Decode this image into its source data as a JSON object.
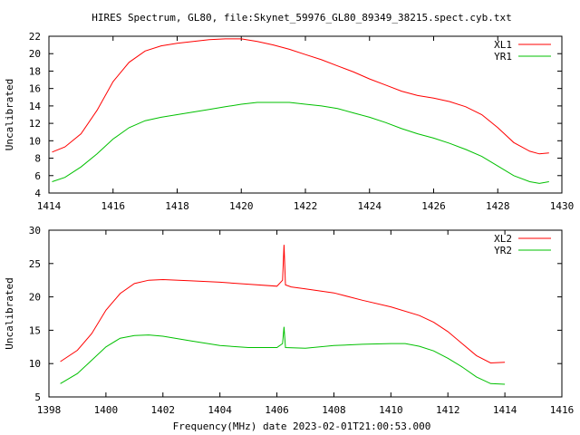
{
  "title": "HIRES Spectrum, GL80, file:Skynet_59976_GL80_89349_38215.spect.cyb.txt",
  "xlabel": "Frequency(MHz) date 2023-02-01T21:00:53.000",
  "chart_data": [
    {
      "type": "line",
      "ylabel": "Uncalibrated",
      "xlim": [
        1414,
        1430
      ],
      "ylim": [
        4,
        22
      ],
      "xticks": [
        1414,
        1416,
        1418,
        1420,
        1422,
        1424,
        1426,
        1428,
        1430
      ],
      "yticks": [
        4,
        6,
        8,
        10,
        12,
        14,
        16,
        18,
        20,
        22
      ],
      "legend_position": "top-right",
      "series": [
        {
          "name": "XL1",
          "color": "#ff0000",
          "x": [
            1414.1,
            1414.5,
            1415,
            1415.5,
            1416,
            1416.5,
            1417,
            1417.5,
            1418,
            1418.5,
            1419,
            1419.5,
            1420,
            1420.5,
            1421,
            1421.5,
            1422,
            1422.5,
            1423,
            1423.5,
            1424,
            1424.5,
            1425,
            1425.5,
            1426,
            1426.5,
            1427,
            1427.5,
            1428,
            1428.5,
            1429,
            1429.3,
            1429.6
          ],
          "y": [
            8.7,
            9.3,
            10.8,
            13.5,
            16.8,
            19,
            20.3,
            20.9,
            21.2,
            21.4,
            21.6,
            21.7,
            21.7,
            21.4,
            21,
            20.5,
            19.9,
            19.3,
            18.6,
            17.9,
            17.1,
            16.4,
            15.7,
            15.2,
            14.9,
            14.5,
            13.9,
            13,
            11.5,
            9.8,
            8.8,
            8.5,
            8.6
          ]
        },
        {
          "name": "YR1",
          "color": "#00c000",
          "x": [
            1414.1,
            1414.5,
            1415,
            1415.5,
            1416,
            1416.5,
            1417,
            1417.5,
            1418,
            1418.5,
            1419,
            1419.5,
            1420,
            1420.5,
            1421,
            1421.5,
            1422,
            1422.5,
            1423,
            1423.5,
            1424,
            1424.5,
            1425,
            1425.5,
            1426,
            1426.5,
            1427,
            1427.5,
            1428,
            1428.5,
            1429,
            1429.3,
            1429.6
          ],
          "y": [
            5.3,
            5.8,
            7,
            8.5,
            10.2,
            11.5,
            12.3,
            12.7,
            13,
            13.3,
            13.6,
            13.9,
            14.2,
            14.4,
            14.4,
            14.4,
            14.2,
            14,
            13.7,
            13.2,
            12.7,
            12.1,
            11.4,
            10.8,
            10.3,
            9.7,
            9,
            8.2,
            7.1,
            6,
            5.3,
            5.1,
            5.3
          ]
        }
      ]
    },
    {
      "type": "line",
      "ylabel": "Uncalibrated",
      "xlim": [
        1398,
        1416
      ],
      "ylim": [
        5,
        30
      ],
      "xticks": [
        1398,
        1400,
        1402,
        1404,
        1406,
        1408,
        1410,
        1412,
        1414,
        1416
      ],
      "yticks": [
        5,
        10,
        15,
        20,
        25,
        30
      ],
      "legend_position": "top-right",
      "series": [
        {
          "name": "XL2",
          "color": "#ff0000",
          "x": [
            1398.4,
            1399,
            1399.5,
            1400,
            1400.5,
            1401,
            1401.5,
            1402,
            1403,
            1404,
            1405,
            1406,
            1406.2,
            1406.25,
            1406.3,
            1406.5,
            1407,
            1408,
            1409,
            1410,
            1411,
            1411.5,
            1412,
            1412.5,
            1413,
            1413.5,
            1414
          ],
          "y": [
            10.3,
            12,
            14.5,
            18,
            20.5,
            22,
            22.5,
            22.6,
            22.4,
            22.2,
            21.9,
            21.6,
            22.5,
            27.8,
            21.8,
            21.5,
            21.2,
            20.6,
            19.5,
            18.5,
            17.2,
            16.2,
            14.8,
            13,
            11.2,
            10.1,
            10.2
          ]
        },
        {
          "name": "YR2",
          "color": "#00c000",
          "x": [
            1398.4,
            1399,
            1399.5,
            1400,
            1400.5,
            1401,
            1401.5,
            1402,
            1403,
            1404,
            1405,
            1406,
            1406.2,
            1406.25,
            1406.3,
            1407,
            1408,
            1409,
            1410,
            1410.5,
            1411,
            1411.5,
            1412,
            1412.5,
            1413,
            1413.5,
            1414
          ],
          "y": [
            7,
            8.5,
            10.5,
            12.5,
            13.8,
            14.2,
            14.3,
            14.1,
            13.4,
            12.7,
            12.4,
            12.4,
            13,
            15.5,
            12.4,
            12.3,
            12.7,
            12.9,
            13,
            13,
            12.6,
            11.9,
            10.8,
            9.5,
            8,
            7,
            6.9
          ]
        }
      ]
    }
  ]
}
